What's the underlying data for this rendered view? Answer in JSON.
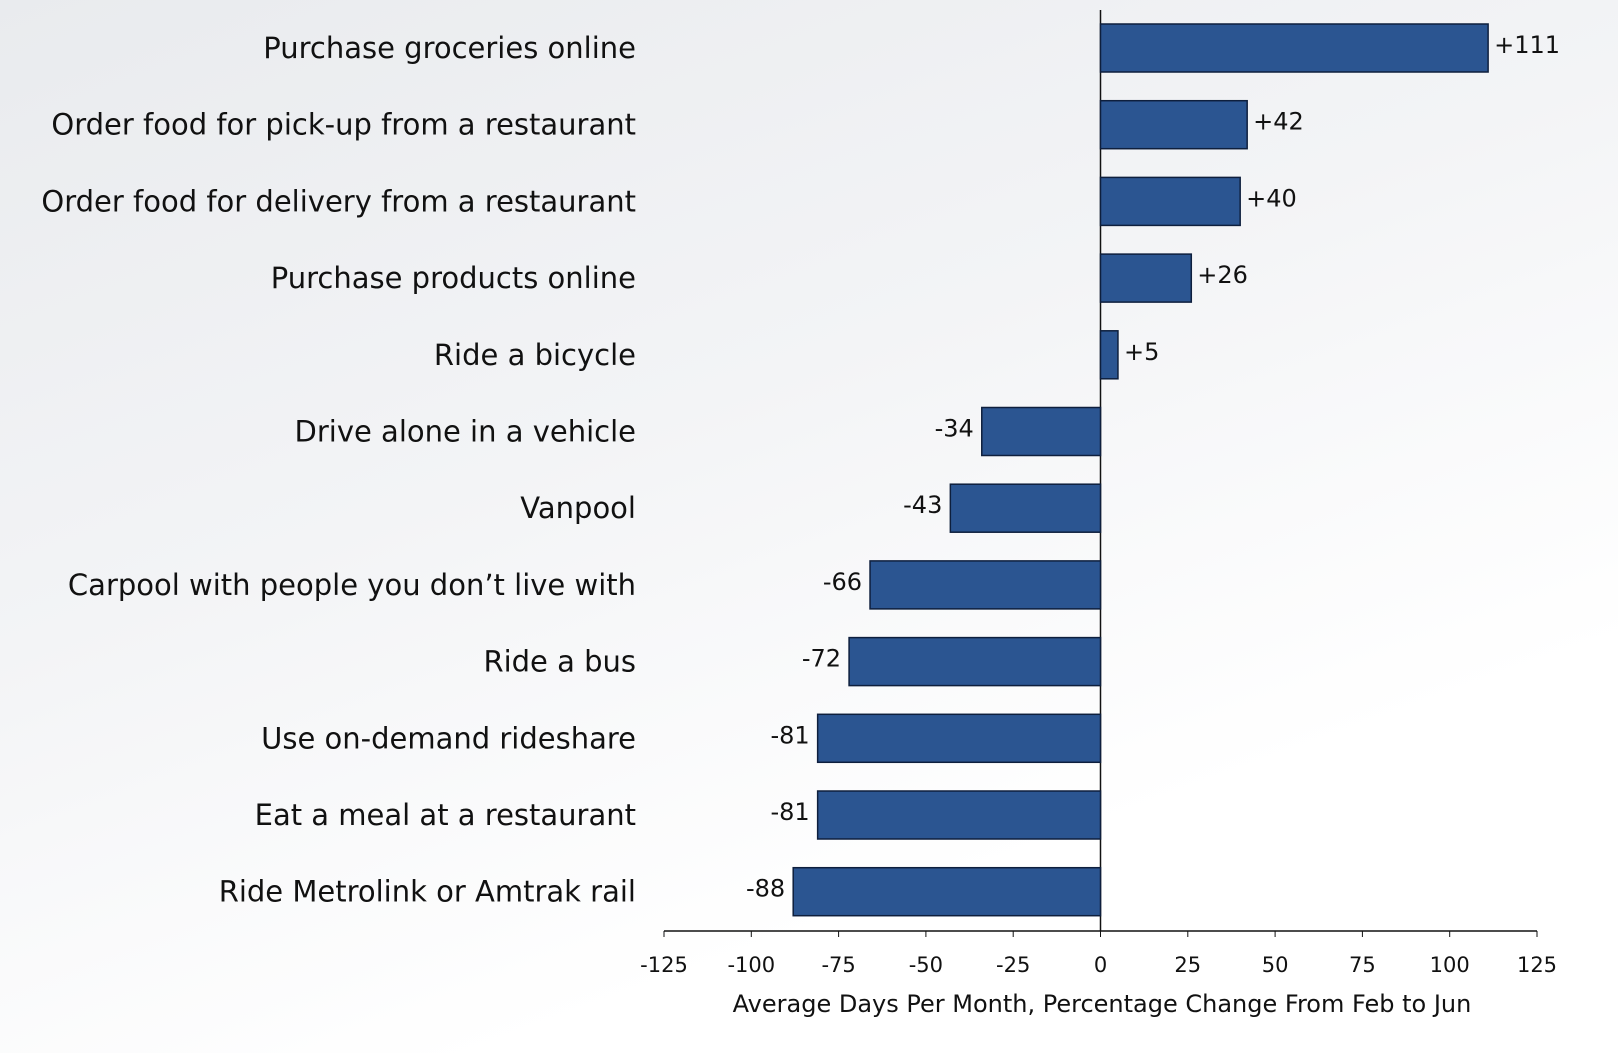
{
  "chart_data": {
    "type": "barh",
    "xlabel": "Average Days Per Month, Percentage Change From Feb to Jun",
    "categories": [
      "Purchase groceries online",
      "Order food for pick-up from a restaurant",
      "Order food for delivery from a restaurant",
      "Purchase products online",
      "Ride a bicycle",
      "Drive alone in a vehicle",
      "Vanpool",
      "Carpool with people you don’t live with",
      "Ride a bus",
      "Use on-demand rideshare",
      "Eat a meal at a restaurant",
      "Ride Metrolink or Amtrak rail"
    ],
    "values": [
      111,
      42,
      40,
      26,
      5,
      -34,
      -43,
      -66,
      -72,
      -81,
      -81,
      -88
    ],
    "value_labels": [
      "+111",
      "+42",
      "+40",
      "+26",
      "+5",
      "-34",
      "-43",
      "-66",
      "-72",
      "-81",
      "-81",
      "-88"
    ],
    "color": "#2b5591",
    "xlim": [
      -125,
      125
    ],
    "xticks": [
      -125,
      -100,
      -75,
      -50,
      -25,
      0,
      25,
      50,
      75,
      100,
      125
    ],
    "grid": false
  }
}
